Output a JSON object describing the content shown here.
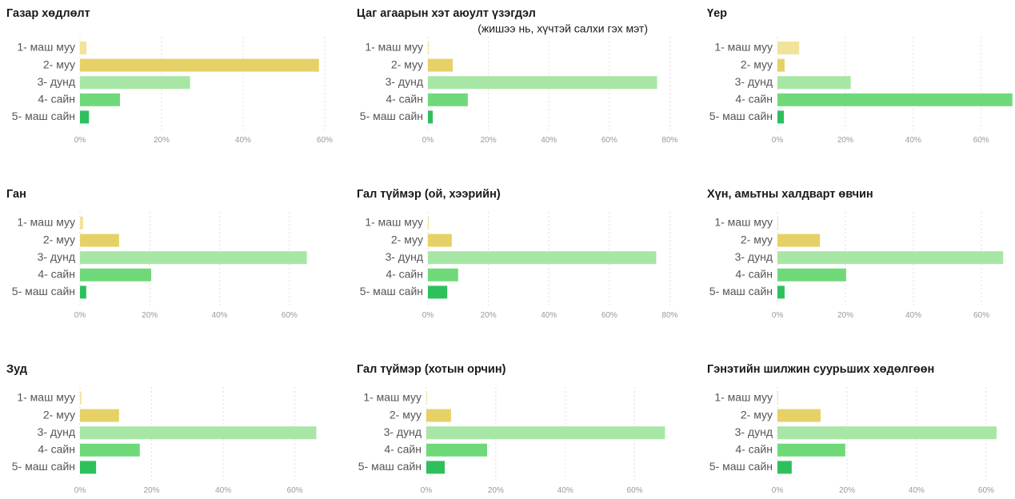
{
  "chart_data": [
    {
      "type": "bar",
      "orientation": "horizontal",
      "title": "Газар хөдлөлт",
      "categories": [
        "1- маш муу",
        "2- муу",
        "3- дунд",
        "4- сайн",
        "5- маш сайн"
      ],
      "values": [
        1.6,
        58.6,
        27,
        9.8,
        2.2
      ],
      "colors": [
        "#f2e39a",
        "#e6d166",
        "#a8e6a6",
        "#6fd97a",
        "#2ec05c"
      ],
      "xlim": [
        0,
        61
      ],
      "xticks": [
        {
          "value": 0,
          "label": "0%"
        },
        {
          "value": 20,
          "label": "20%"
        },
        {
          "value": 40,
          "label": "40%"
        },
        {
          "value": 60,
          "label": "60%"
        }
      ],
      "grid": true
    },
    {
      "type": "bar",
      "orientation": "horizontal",
      "title": "Цаг агаарын хэт аюулт үзэгдэл",
      "subtitle": "(жишээ нь, хүчтэй салхи гэх мэт)",
      "categories": [
        "1- маш муу",
        "2- муу",
        "3- дунд",
        "4- сайн",
        "5- маш сайн"
      ],
      "values": [
        0.3,
        8.2,
        75.8,
        13.2,
        1.6
      ],
      "colors": [
        "#f2e39a",
        "#e6d166",
        "#a8e6a6",
        "#6fd97a",
        "#2ec05c"
      ],
      "xlim": [
        0,
        82
      ],
      "xticks": [
        {
          "value": 0,
          "label": "0%"
        },
        {
          "value": 20,
          "label": "20%"
        },
        {
          "value": 40,
          "label": "40%"
        },
        {
          "value": 60,
          "label": "60%"
        },
        {
          "value": 80,
          "label": "80%"
        }
      ],
      "grid": true
    },
    {
      "type": "bar",
      "orientation": "horizontal",
      "title": "Үер",
      "categories": [
        "1- маш муу",
        "2- муу",
        "3- дунд",
        "4- сайн",
        "5- маш сайн"
      ],
      "values": [
        6.4,
        2.1,
        21.6,
        69.2,
        1.9
      ],
      "colors": [
        "#f2e39a",
        "#e6d166",
        "#a8e6a6",
        "#6fd97a",
        "#2ec05c"
      ],
      "xlim": [
        0,
        69.5
      ],
      "xticks": [
        {
          "value": 0,
          "label": "0%"
        },
        {
          "value": 20,
          "label": "20%"
        },
        {
          "value": 40,
          "label": "40%"
        },
        {
          "value": 60,
          "label": "60%"
        }
      ],
      "grid": true
    },
    {
      "type": "bar",
      "orientation": "horizontal",
      "title": "Ган",
      "categories": [
        "1- маш муу",
        "2- муу",
        "3- дунд",
        "4- сайн",
        "5- маш сайн"
      ],
      "values": [
        0.9,
        11.2,
        65,
        20.4,
        1.8
      ],
      "colors": [
        "#f2e39a",
        "#e6d166",
        "#a8e6a6",
        "#6fd97a",
        "#2ec05c"
      ],
      "xlim": [
        0,
        66
      ],
      "xticks": [
        {
          "value": 0,
          "label": "0%"
        },
        {
          "value": 20,
          "label": "20%"
        },
        {
          "value": 40,
          "label": "40%"
        },
        {
          "value": 60,
          "label": "60%"
        }
      ],
      "grid": true
    },
    {
      "type": "bar",
      "orientation": "horizontal",
      "title": "Гал түймэр (ой, хээрийн)",
      "categories": [
        "1- маш муу",
        "2- муу",
        "3- дунд",
        "4- сайн",
        "5- маш сайн"
      ],
      "values": [
        0.3,
        7.9,
        75.5,
        10,
        6.4
      ],
      "colors": [
        "#f2e39a",
        "#e6d166",
        "#a8e6a6",
        "#6fd97a",
        "#2ec05c"
      ],
      "xlim": [
        0,
        82
      ],
      "xticks": [
        {
          "value": 0,
          "label": "0%"
        },
        {
          "value": 20,
          "label": "20%"
        },
        {
          "value": 40,
          "label": "40%"
        },
        {
          "value": 60,
          "label": "60%"
        },
        {
          "value": 80,
          "label": "80%"
        }
      ],
      "grid": true
    },
    {
      "type": "bar",
      "orientation": "horizontal",
      "title": "Хүн, амьтны халдварт өвчин",
      "categories": [
        "1- маш муу",
        "2- муу",
        "3- дунд",
        "4- сайн",
        "5- маш сайн"
      ],
      "values": [
        0.2,
        12.5,
        66.4,
        20.2,
        2.1
      ],
      "colors": [
        "#f2e39a",
        "#e6d166",
        "#a8e6a6",
        "#6fd97a",
        "#2ec05c"
      ],
      "xlim": [
        0,
        68
      ],
      "xticks": [
        {
          "value": 0,
          "label": "0%"
        },
        {
          "value": 20,
          "label": "20%"
        },
        {
          "value": 40,
          "label": "40%"
        },
        {
          "value": 60,
          "label": "60%"
        }
      ],
      "grid": true
    },
    {
      "type": "bar",
      "orientation": "horizontal",
      "title": "Зуд",
      "categories": [
        "1- маш муу",
        "2- муу",
        "3- дунд",
        "4- сайн",
        "5- маш сайн"
      ],
      "values": [
        0.4,
        10.9,
        66,
        16.7,
        4.5
      ],
      "colors": [
        "#f2e39a",
        "#e6d166",
        "#a8e6a6",
        "#6fd97a",
        "#2ec05c"
      ],
      "xlim": [
        0,
        67
      ],
      "xticks": [
        {
          "value": 0,
          "label": "0%"
        },
        {
          "value": 20,
          "label": "20%"
        },
        {
          "value": 40,
          "label": "40%"
        },
        {
          "value": 60,
          "label": "60%"
        }
      ],
      "grid": true
    },
    {
      "type": "bar",
      "orientation": "horizontal",
      "title": "Гал түймэр (хотын орчин)",
      "categories": [
        "1- маш муу",
        "2- муу",
        "3- дунд",
        "4- сайн",
        "5- маш сайн"
      ],
      "values": [
        0.2,
        7.1,
        68.7,
        17.5,
        5.3
      ],
      "colors": [
        "#f2e39a",
        "#e6d166",
        "#a8e6a6",
        "#6fd97a",
        "#2ec05c"
      ],
      "xlim": [
        0,
        70
      ],
      "xticks": [
        {
          "value": 0,
          "label": "0%"
        },
        {
          "value": 20,
          "label": "20%"
        },
        {
          "value": 40,
          "label": "40%"
        },
        {
          "value": 60,
          "label": "60%"
        }
      ],
      "grid": true
    },
    {
      "type": "bar",
      "orientation": "horizontal",
      "title": "Гэнэтийн шилжин суурьших хөдөлгөөн",
      "categories": [
        "1- маш муу",
        "2- муу",
        "3- дунд",
        "4- сайн",
        "5- маш сайн"
      ],
      "values": [
        0.2,
        12.4,
        63,
        19.5,
        4.1
      ],
      "colors": [
        "#f2e39a",
        "#e6d166",
        "#a8e6a6",
        "#6fd97a",
        "#2ec05c"
      ],
      "xlim": [
        0,
        66
      ],
      "xticks": [
        {
          "value": 0,
          "label": "0%"
        },
        {
          "value": 20,
          "label": "20%"
        },
        {
          "value": 40,
          "label": "40%"
        },
        {
          "value": 60,
          "label": "60%"
        }
      ],
      "grid": true
    }
  ]
}
